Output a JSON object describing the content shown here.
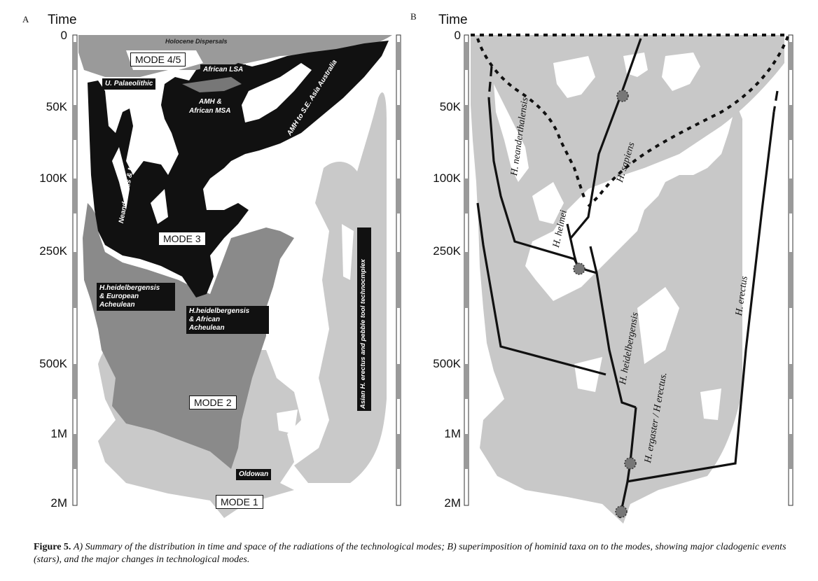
{
  "panel_a": {
    "letter": "A",
    "time_label": "Time",
    "ticks": [
      "0",
      "50K",
      "100K",
      "250K",
      "500K",
      "1M",
      "2M"
    ],
    "mode_labels": [
      "MODE 4/5",
      "MODE 3",
      "MODE 2",
      "MODE 1"
    ],
    "region_labels": {
      "holocene": "Holocene Dispersals",
      "african_lsa": "African LSA",
      "u_palaeolithic": "U. Palaeolithic",
      "amh_msa_1": "AMH &",
      "amh_msa_2": "African MSA",
      "amh_asia": "AMH to S.E. Asia Australia",
      "neanderthals": "Neanderthals & Mousterian",
      "heid_euro_1": "H.heidelbergensis",
      "heid_euro_2": "& European",
      "heid_euro_3": "Acheulean",
      "heid_afr_1": "H.heidelbergensis",
      "heid_afr_2": "& African",
      "heid_afr_3": "Acheulean",
      "asian_erectus": "Asian H. erectus and pebble tool technocmplex",
      "oldowan": "Oldowan"
    }
  },
  "panel_b": {
    "letter": "B",
    "time_label": "Time",
    "ticks": [
      "0",
      "50K",
      "100K",
      "250K",
      "500K",
      "1M",
      "2M"
    ],
    "taxa": {
      "neanderthalensis": "H. neanderthalensis",
      "sapiens": "H. sapiens",
      "helmei": "H. helmei",
      "heidelbergensis": "H. heidelbergensis",
      "ergaster": "H. ergaster / H erectus.",
      "erectus": "H. erectus"
    }
  },
  "caption": {
    "lead": "Figure 5.",
    "text": "A) Summary of the distribution in time and space of the radiations of the technological modes; B) superimposition of hominid taxa on to the modes, showing major cladogenic events (stars), and the major changes in technological modes."
  },
  "colors": {
    "light_grey": "#c9c9c9",
    "mid_grey": "#8a8a8a",
    "black": "#111111",
    "b_grey": "#c8c8c8"
  }
}
